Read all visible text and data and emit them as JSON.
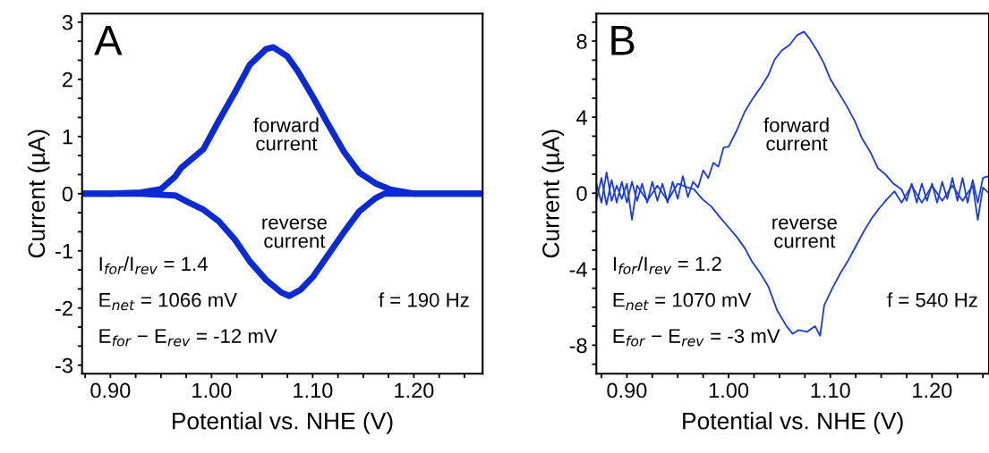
{
  "chart_data": [
    {
      "type": "line",
      "title": "A",
      "xlabel": "Potential vs. NHE (V)",
      "ylabel": "Current (µA)",
      "xlim": [
        0.872,
        1.268
      ],
      "ylim": [
        -3.15,
        3.15
      ],
      "xticks": [
        {
          "value": 0.875,
          "label": null
        },
        {
          "value": 0.9,
          "label": "0.90"
        },
        {
          "value": 0.925,
          "label": null
        },
        {
          "value": 0.95,
          "label": null
        },
        {
          "value": 0.975,
          "label": null
        },
        {
          "value": 1.0,
          "label": "1.00"
        },
        {
          "value": 1.025,
          "label": null
        },
        {
          "value": 1.05,
          "label": null
        },
        {
          "value": 1.075,
          "label": null
        },
        {
          "value": 1.1,
          "label": "1.10"
        },
        {
          "value": 1.125,
          "label": null
        },
        {
          "value": 1.15,
          "label": null
        },
        {
          "value": 1.175,
          "label": null
        },
        {
          "value": 1.2,
          "label": "1.20"
        },
        {
          "value": 1.225,
          "label": null
        },
        {
          "value": 1.25,
          "label": null
        }
      ],
      "yticks": [
        {
          "value": -3,
          "label": "-3"
        },
        {
          "value": -2.667,
          "label": null
        },
        {
          "value": -2.333,
          "label": null
        },
        {
          "value": -2,
          "label": "-2"
        },
        {
          "value": -1.667,
          "label": null
        },
        {
          "value": -1.333,
          "label": null
        },
        {
          "value": -1,
          "label": "-1"
        },
        {
          "value": -0.667,
          "label": null
        },
        {
          "value": -0.333,
          "label": null
        },
        {
          "value": 0,
          "label": "0"
        },
        {
          "value": 0.333,
          "label": null
        },
        {
          "value": 0.667,
          "label": null
        },
        {
          "value": 1,
          "label": "1"
        },
        {
          "value": 1.333,
          "label": null
        },
        {
          "value": 1.667,
          "label": null
        },
        {
          "value": 2,
          "label": "2"
        },
        {
          "value": 2.333,
          "label": null
        },
        {
          "value": 2.667,
          "label": null
        },
        {
          "value": 3,
          "label": "3"
        }
      ],
      "grid": false,
      "legend": false,
      "marker": "none",
      "line_style": "solid",
      "annotations": [
        "forward\ncurrent",
        "reverse\ncurrent",
        "I$_{for}$/I$_{rev}$ = 1.4",
        "E$_{net}$ = 1066 mV",
        "E$_{for}$ − E$_{rev}$ = -12 mV",
        "f = 190 Hz"
      ],
      "series": [
        {
          "color": "#0a2ad4",
          "x": [
            0.872,
            0.9,
            0.93,
            0.95,
            0.964,
            0.97,
            0.992,
            1.007,
            1.023,
            1.038,
            1.054,
            1.061,
            1.075,
            1.085,
            1.1,
            1.115,
            1.131,
            1.146,
            1.162,
            1.177,
            1.2,
            1.268
          ],
          "values": [
            0,
            0,
            0.02,
            0.08,
            0.3,
            0.45,
            0.78,
            1.27,
            1.77,
            2.26,
            2.53,
            2.56,
            2.4,
            2.15,
            1.7,
            1.22,
            0.73,
            0.37,
            0.18,
            0.07,
            0,
            0
          ]
        },
        {
          "color": "#0a2ad4",
          "x": [
            0.872,
            0.93,
            0.964,
            0.977,
            0.992,
            1.007,
            1.023,
            1.038,
            1.054,
            1.069,
            1.077,
            1.088,
            1.1,
            1.115,
            1.131,
            1.146,
            1.162,
            1.171,
            1.268
          ],
          "values": [
            0,
            0,
            -0.03,
            -0.15,
            -0.28,
            -0.48,
            -0.8,
            -1.19,
            -1.51,
            -1.73,
            -1.79,
            -1.68,
            -1.46,
            -1.08,
            -0.67,
            -0.31,
            -0.08,
            0,
            0
          ]
        }
      ]
    },
    {
      "type": "line",
      "title": "B",
      "xlabel": "Potential vs. NHE (V)",
      "ylabel": "Current (µA)",
      "xlim": [
        0.87,
        1.256
      ],
      "ylim": [
        -9.5,
        9.45
      ],
      "xticks": [
        {
          "value": 0.875,
          "label": null
        },
        {
          "value": 0.9,
          "label": "0.90"
        },
        {
          "value": 0.925,
          "label": null
        },
        {
          "value": 0.95,
          "label": null
        },
        {
          "value": 0.975,
          "label": null
        },
        {
          "value": 1.0,
          "label": "1.00"
        },
        {
          "value": 1.025,
          "label": null
        },
        {
          "value": 1.05,
          "label": null
        },
        {
          "value": 1.075,
          "label": null
        },
        {
          "value": 1.1,
          "label": "1.10"
        },
        {
          "value": 1.125,
          "label": null
        },
        {
          "value": 1.15,
          "label": null
        },
        {
          "value": 1.175,
          "label": null
        },
        {
          "value": 1.2,
          "label": "1.20"
        },
        {
          "value": 1.225,
          "label": null
        },
        {
          "value": 1.25,
          "label": null
        }
      ],
      "yticks": [
        {
          "value": -9,
          "label": null
        },
        {
          "value": -8,
          "label": "-8"
        },
        {
          "value": -7,
          "label": null
        },
        {
          "value": -6,
          "label": null
        },
        {
          "value": -5,
          "label": null
        },
        {
          "value": -4,
          "label": "-4"
        },
        {
          "value": -3,
          "label": null
        },
        {
          "value": -2,
          "label": null
        },
        {
          "value": -1,
          "label": null
        },
        {
          "value": 0,
          "label": "0"
        },
        {
          "value": 1,
          "label": null
        },
        {
          "value": 2,
          "label": null
        },
        {
          "value": 3,
          "label": null
        },
        {
          "value": 4,
          "label": "4"
        },
        {
          "value": 5,
          "label": null
        },
        {
          "value": 6,
          "label": null
        },
        {
          "value": 7,
          "label": null
        },
        {
          "value": 8,
          "label": "8"
        },
        {
          "value": 9,
          "label": null
        }
      ],
      "grid": false,
      "legend": false,
      "marker": "none",
      "line_style": "solid",
      "annotations": [
        "forward\ncurrent",
        "reverse\ncurrent",
        "I$_{for}$/I$_{rev}$ = 1.2",
        "E$_{net}$ = 1070 mV",
        "E$_{for}$ − E$_{rev}$ = -3 mV",
        "f = 540 Hz"
      ],
      "series": [
        {
          "color": "#1a3ae0",
          "x": [
            0.87,
            0.875,
            0.88,
            0.885,
            0.89,
            0.895,
            0.9,
            0.905,
            0.91,
            0.915,
            0.92,
            0.925,
            0.93,
            0.935,
            0.94,
            0.945,
            0.95,
            0.955,
            0.96,
            0.965,
            0.97,
            0.975,
            0.98,
            0.985,
            0.99,
            0.995,
            1.0,
            1.008,
            1.016,
            1.024,
            1.032,
            1.039,
            1.045,
            1.052,
            1.06,
            1.067,
            1.074,
            1.08,
            1.087,
            1.094,
            1.1,
            1.108,
            1.116,
            1.124,
            1.131,
            1.139,
            1.147,
            1.154,
            1.162,
            1.17,
            1.175,
            1.18,
            1.185,
            1.19,
            1.195,
            1.2,
            1.205,
            1.21,
            1.215,
            1.22,
            1.225,
            1.23,
            1.235,
            1.24,
            1.245,
            1.25,
            1.256
          ],
          "values": [
            -0.4,
            0.8,
            -0.6,
            0.7,
            -0.5,
            0.6,
            -0.5,
            0.6,
            -0.4,
            0.5,
            -0.5,
            0.6,
            -0.4,
            0.5,
            -0.5,
            0.6,
            -0.3,
            0.9,
            -0.2,
            0.6,
            0.3,
            1.2,
            0.8,
            1.6,
            1.4,
            2.4,
            2.45,
            3.3,
            4.3,
            5.0,
            5.6,
            6.2,
            7.0,
            7.5,
            7.8,
            8.3,
            8.5,
            8.1,
            7.5,
            6.8,
            6.0,
            5.3,
            4.6,
            3.8,
            2.9,
            2.2,
            1.3,
            1.0,
            0.5,
            0.2,
            -0.4,
            0.5,
            -0.5,
            0.5,
            -0.4,
            0.5,
            -0.5,
            0.6,
            -0.3,
            0.8,
            -0.4,
            0.8,
            -0.5,
            0.7,
            -0.5,
            0.8,
            0.9
          ]
        },
        {
          "color": "#1a3ae0",
          "x": [
            0.87,
            0.875,
            0.88,
            0.885,
            0.89,
            0.895,
            0.9,
            0.905,
            0.91,
            0.92,
            0.93,
            0.94,
            0.95,
            0.96,
            0.966,
            0.974,
            0.983,
            0.992,
            1.0,
            1.008,
            1.016,
            1.023,
            1.031,
            1.039,
            1.048,
            1.057,
            1.063,
            1.069,
            1.077,
            1.085,
            1.09,
            1.094,
            1.102,
            1.11,
            1.118,
            1.125,
            1.133,
            1.141,
            1.148,
            1.156,
            1.163,
            1.17,
            1.18,
            1.19,
            1.2,
            1.21,
            1.22,
            1.23,
            1.24,
            1.245,
            1.25,
            1.256
          ],
          "values": [
            0.5,
            -0.5,
            1.1,
            -0.4,
            0.4,
            -0.3,
            0.5,
            -1.4,
            0.4,
            -0.4,
            0.4,
            -0.4,
            0.5,
            0.3,
            0.2,
            -0.3,
            -0.7,
            -1.3,
            -1.8,
            -2.3,
            -2.9,
            -3.6,
            -4.2,
            -4.9,
            -6.2,
            -7.0,
            -7.4,
            -7.2,
            -7.3,
            -7.0,
            -7.5,
            -5.9,
            -5.0,
            -4.2,
            -3.5,
            -2.8,
            -2.0,
            -1.3,
            -0.8,
            -0.3,
            0.1,
            -0.5,
            0.4,
            -0.5,
            0.4,
            -0.4,
            0.4,
            -0.4,
            0.4,
            -1.4,
            0.3,
            0
          ]
        }
      ]
    }
  ]
}
